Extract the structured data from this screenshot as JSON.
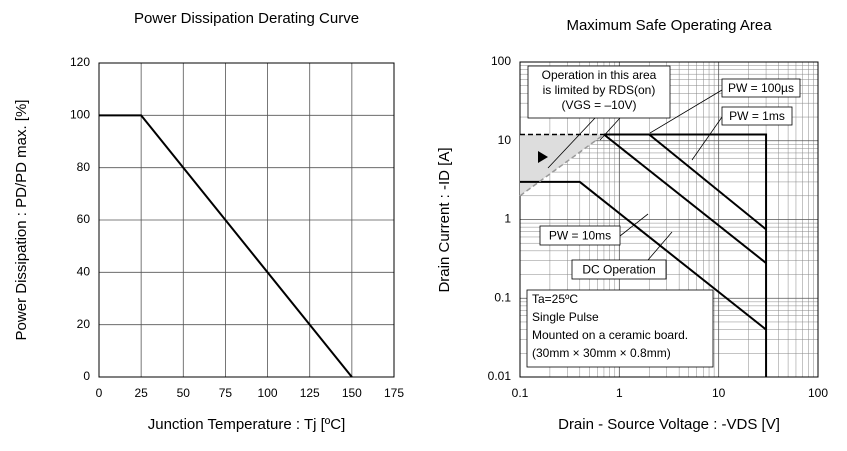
{
  "chart_data": [
    {
      "type": "line",
      "title": "Power Dissipation Derating Curve",
      "xlabel": "Junction Temperature : Tj [ºC]",
      "ylabel": "Power Dissipation : PD/PD max. [%]",
      "x": [
        0,
        25,
        150
      ],
      "series": [
        {
          "color": "#000000",
          "values": [
            100,
            100,
            0
          ]
        }
      ],
      "xlim": [
        0,
        175
      ],
      "xticks": [
        0,
        25,
        50,
        75,
        100,
        125,
        150,
        175
      ],
      "ylim": [
        0,
        120
      ],
      "yticks": [
        0,
        20,
        40,
        60,
        80,
        100,
        120
      ],
      "grid": true
    },
    {
      "type": "line",
      "title": "Maximum Safe Operating Area",
      "xlabel": "Drain - Source Voltage : -VDS [V]",
      "ylabel": "Drain Current : -ID [A]",
      "xscale": "log",
      "yscale": "log",
      "series": [
        {
          "name": "PW = 100µs",
          "color": "#000000",
          "x": [
            0.7,
            30,
            30
          ],
          "values": [
            12,
            12,
            0.01
          ]
        },
        {
          "name": "PW = 1ms",
          "color": "#000000",
          "x": [
            2,
            30
          ],
          "values": [
            12,
            0.75
          ]
        },
        {
          "name": "PW = 10ms",
          "color": "#000000",
          "x": [
            0.7,
            30
          ],
          "values": [
            12,
            0.28
          ]
        },
        {
          "name": "DC Operation",
          "color": "#000000",
          "x": [
            0.1,
            0.4,
            30
          ],
          "values": [
            3,
            3,
            0.04
          ]
        },
        {
          "color": "#000000",
          "dash": true,
          "x": [
            0.1,
            0.7
          ],
          "values": [
            12,
            12
          ]
        },
        {
          "color": "#999999",
          "dash": true,
          "x": [
            0.1,
            0.7
          ],
          "values": [
            2,
            12
          ]
        }
      ],
      "annotations": [
        [
          "Operation in this area",
          "is limited by RDS(on)",
          "(VGS = –10V)"
        ],
        [
          "Ta=25ºC",
          "Single Pulse",
          "Mounted on a ceramic board.",
          "(30mm × 30mm × 0.8mm)"
        ]
      ],
      "xlim": [
        0.1,
        100
      ],
      "xticks": [
        0.1,
        1,
        10,
        100
      ],
      "ylim": [
        0.01,
        100
      ],
      "yticks": [
        0.01,
        0.1,
        1,
        10,
        100
      ],
      "grid": true,
      "minor_grid": true
    }
  ]
}
